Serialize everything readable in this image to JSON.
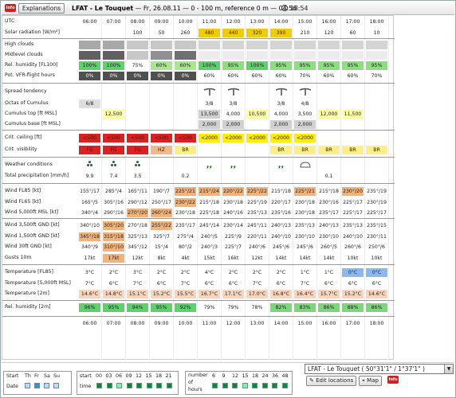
{
  "header": {
    "info_badge": "Info",
    "explanations": "Explanations",
    "station": "LFAT - Le Touquet",
    "rest": " — Fr, 26.08.11 — 0 - 100 m, reference 0 m — 04:56",
    "time2": "18:54"
  },
  "hours": [
    "06:00",
    "07:00",
    "08:00",
    "09:00",
    "10:00",
    "11:00",
    "12:00",
    "13:00",
    "14:00",
    "15:00",
    "16:00",
    "17:00",
    "18:00"
  ],
  "rows": [
    {
      "label": "UTC",
      "cells": [
        "06:00",
        "07:00",
        "08:00",
        "09:00",
        "10:00",
        "11:00",
        "12:00",
        "13:00",
        "14:00",
        "15:00",
        "16:00",
        "17:00",
        "18:00"
      ]
    },
    {
      "label": "Solar radiation [W/m²]",
      "cells": [
        "",
        "",
        "100",
        "50",
        "260",
        "480",
        "440",
        "320",
        "390",
        "210",
        "120",
        "60",
        "10"
      ],
      "bg": [
        "",
        "",
        "",
        "",
        "",
        "#f0cc00",
        "#f0cc00",
        "#f0cc00",
        "#f0cc00",
        "",
        "",
        "",
        ""
      ]
    },
    {
      "label": "High clouds",
      "cells": [
        "",
        "",
        "",
        "",
        "",
        "",
        "",
        "",
        "",
        "",
        "",
        "",
        ""
      ],
      "bg": [
        "#a8a8a8",
        "#a8a8a8",
        "#c8c8c8",
        "#c8c8c8",
        "#c8c8c8",
        "#d4d4d4",
        "#d4d4d4",
        "#d4d4d4",
        "#d4d4d4",
        "#d4d4d4",
        "#d4d4d4",
        "#d4d4d4",
        "#d4d4d4"
      ]
    },
    {
      "label": "Midlevel clouds",
      "cells": [
        "",
        "",
        "",
        "",
        "",
        "",
        "",
        "",
        "",
        "",
        "",
        "",
        ""
      ],
      "bg": [
        "#606060",
        "#606060",
        "#c8c8c8",
        "#909090",
        "#707070",
        "#ececec",
        "#ececec",
        "#ececec",
        "#ececec",
        "#ececec",
        "#ececec",
        "#ececec",
        "#ececec"
      ]
    },
    {
      "label": "Rel. humidity [FL100]",
      "cells": [
        "100%",
        "100%",
        "75%",
        "60%",
        "60%",
        "100%",
        "95%",
        "100%",
        "95%",
        "95%",
        "95%",
        "95%",
        "95%"
      ],
      "bg": [
        "#5ad46a",
        "#5ad46a",
        "",
        "#a6e88a",
        "#a6e88a",
        "#5ad46a",
        "#8ae07a",
        "#5ad46a",
        "#8ae07a",
        "#8ae07a",
        "#8ae07a",
        "#8ae07a",
        "#8ae07a"
      ]
    },
    {
      "label": "Pot. VFR-flight hours",
      "cells": [
        "0%",
        "0%",
        "0%",
        "0%",
        "0%",
        "60%",
        "60%",
        "60%",
        "60%",
        "70%",
        "60%",
        "60%",
        "70%"
      ],
      "bg": [
        "#505050",
        "#505050",
        "#505050",
        "#505050",
        "#505050",
        "",
        "",
        "",
        "",
        "",
        "",
        "",
        ""
      ],
      "fg": [
        "#fff",
        "#fff",
        "#fff",
        "#fff",
        "#fff",
        "",
        "",
        "",
        "",
        "",
        "",
        "",
        ""
      ]
    },
    {
      "label": "Spread tendency",
      "cells": [
        "",
        "",
        "",
        "",
        "",
        "T",
        "T",
        "",
        "T",
        "T",
        "",
        "",
        ""
      ]
    },
    {
      "label": "Octas of Cumulus",
      "cells": [
        "6/8",
        "",
        "",
        "",
        "",
        "3/8",
        "3/8",
        "",
        "3/8",
        "4/8",
        "",
        "",
        ""
      ],
      "bg": [
        "#dedede",
        "",
        "",
        "",
        "",
        "",
        "",
        "",
        "",
        "",
        "",
        "",
        ""
      ]
    },
    {
      "label": "Cumulus top [ft MSL]",
      "cells": [
        "",
        "12,500",
        "",
        "",
        "",
        "13,500",
        "4,000",
        "10,500",
        "4,000",
        "3,500",
        "12,000",
        "11,500",
        ""
      ],
      "bg": [
        "",
        "#ffffa0",
        "",
        "",
        "",
        "#d0d0d0",
        "",
        "#ffffa0",
        "",
        "",
        "#ffffa0",
        "#ffffa0",
        ""
      ]
    },
    {
      "label": "Cumulus base [ft MSL]",
      "cells": [
        "",
        "",
        "",
        "",
        "",
        "2,000",
        "2,000",
        "",
        "2,000",
        "2,000",
        "",
        "",
        ""
      ],
      "bg": [
        "",
        "",
        "",
        "",
        "",
        "#d0d0d0",
        "#d0d0d0",
        "",
        "#d0d0d0",
        "#d0d0d0",
        "",
        "",
        ""
      ]
    },
    {
      "label": "Crit. ceiling [ft]",
      "cells": [
        "<500",
        "<500",
        "<500",
        "<500",
        "<500",
        "<2000",
        "<2000",
        "<2000",
        "<2000",
        "<2000",
        "",
        "",
        ""
      ],
      "bg": [
        "#e02020",
        "#e02020",
        "#e02020",
        "#e02020",
        "#e02020",
        "#ffee00",
        "#ffee00",
        "#ffee00",
        "#ffee00",
        "#ffee00",
        "",
        "",
        ""
      ]
    },
    {
      "label": "Crit. visibility",
      "cells": [
        "FG",
        "FG",
        "FG",
        "HZ",
        "BR",
        "",
        "",
        "",
        "BR",
        "BR",
        "BR",
        "BR",
        "BR"
      ],
      "bg": [
        "#e02020",
        "#e02020",
        "#e02020",
        "#f4b888",
        "#ffee88",
        "",
        "",
        "",
        "#ffee88",
        "#ffee88",
        "#ffee88",
        "#ffee88",
        "#ffee88"
      ]
    },
    {
      "label": "Weather conditions",
      "cells": [
        "",
        "",
        "",
        "",
        "",
        "",
        "",
        "",
        "",
        "",
        "",
        "",
        ""
      ]
    },
    {
      "label": "Total precipitation [mm/h]",
      "cells": [
        "9.9",
        "7.4",
        "3.5",
        "",
        "0.2",
        "",
        "",
        "",
        "",
        "",
        "0.1",
        "",
        ""
      ]
    },
    {
      "label": "Wind FL85 [kt]",
      "cells": [
        "155°/17",
        "285°/4",
        "165°/11",
        "190°/7",
        "225°/21",
        "215°/24",
        "220°/22",
        "225°/22",
        "215°/18",
        "225°/21",
        "215°/18",
        "230°/20",
        "235°/19"
      ],
      "bg": [
        "",
        "",
        "",
        "",
        "#f2b27a",
        "#f2b27a",
        "#f2b27a",
        "#f2b27a",
        "",
        "#f2b27a",
        "",
        "#f2b27a",
        ""
      ]
    },
    {
      "label": "Wind FL65 [kt]",
      "cells": [
        "165°/5",
        "305°/16",
        "290°/12",
        "250°/17",
        "230°/22",
        "215°/18",
        "230°/18",
        "225°/19",
        "220°/17",
        "230°/18",
        "230°/16",
        "225°/17",
        "230°/19"
      ],
      "bg": [
        "",
        "",
        "",
        "",
        "#f2b27a",
        "",
        "",
        "",
        "",
        "",
        "",
        "",
        ""
      ]
    },
    {
      "label": "Wind 5,000ft MSL [kt]",
      "cells": [
        "340°/4",
        "290°/16",
        "270°/20",
        "260°/24",
        "230°/18",
        "225°/18",
        "240°/16",
        "235°/13",
        "235°/16",
        "230°/18",
        "235°/17",
        "225°/17",
        "225°/17"
      ],
      "bg": [
        "",
        "",
        "#f2b27a",
        "#f2b27a",
        "",
        "",
        "",
        "",
        "",
        "",
        "",
        "",
        ""
      ]
    },
    {
      "label": "Wind 3,500ft GND [kt]",
      "cells": [
        "340°/10",
        "305°/20",
        "270°/18",
        "255°/22",
        "235°/17",
        "245°/14",
        "230°/14",
        "245°/11",
        "240°/13",
        "235°/13",
        "240°/13",
        "235°/13",
        "235°/15"
      ],
      "bg": [
        "",
        "#f2b27a",
        "",
        "#f2b27a",
        "",
        "",
        "",
        "",
        "",
        "",
        "",
        "",
        ""
      ]
    },
    {
      "label": "Wind 1,500ft GND [kt]",
      "cells": [
        "345°/18",
        "315°/18",
        "325°/13",
        "325°/7",
        "275°/4",
        "240°/5",
        "225°/9",
        "220°/11",
        "240°/10",
        "230°/10",
        "230°/10",
        "240°/10",
        "230°/11"
      ],
      "bg": [
        "#f2b27a",
        "#f2b27a",
        "",
        "",
        "",
        "",
        "",
        "",
        "",
        "",
        "",
        "",
        ""
      ]
    },
    {
      "label": "Wind 30ft GND [kt]",
      "cells": [
        "340°/9",
        "310°/10",
        "345°/12",
        "15°/4",
        "80°/2",
        "240°/3",
        "225°/7",
        "240°/6",
        "245°/6",
        "245°/6",
        "260°/5",
        "260°/6",
        "250°/6"
      ],
      "bg": [
        "",
        "#f2b27a",
        "",
        "",
        "",
        "",
        "",
        "",
        "",
        "",
        "",
        "",
        ""
      ]
    },
    {
      "label": "Gusts 10m",
      "cells": [
        "17kt",
        "17kt",
        "12kt",
        "8kt",
        "4kt",
        "15kt",
        "16kt",
        "12kt",
        "14kt",
        "14kt",
        "14kt",
        "10kt",
        "10kt"
      ],
      "bg": [
        "",
        "#f2b27a",
        "",
        "",
        "",
        "",
        "",
        "",
        "",
        "",
        "",
        "",
        ""
      ]
    },
    {
      "label": "Temperature [FL85]",
      "cells": [
        "3°C",
        "2°C",
        "3°C",
        "2°C",
        "2°C",
        "4°C",
        "2°C",
        "2°C",
        "2°C",
        "1°C",
        "1°C",
        "0°C",
        "0°C"
      ],
      "bg": [
        "",
        "",
        "",
        "",
        "",
        "",
        "",
        "",
        "",
        "",
        "",
        "#8cb8f0",
        "#8cb8f0"
      ]
    },
    {
      "label": "Temperature [5,000ft MSL]",
      "cells": [
        "7°C",
        "6°C",
        "7°C",
        "6°C",
        "7°C",
        "6°C",
        "6°C",
        "7°C",
        "6°C",
        "7°C",
        "6°C",
        "6°C",
        "6°C"
      ]
    },
    {
      "label": "Temperature [2m]",
      "cells": [
        "14.6°C",
        "14.8°C",
        "15.1°C",
        "15.2°C",
        "15.5°C",
        "16.7°C",
        "17.1°C",
        "17.0°C",
        "16.8°C",
        "16.4°C",
        "15.7°C",
        "15.2°C",
        "14.6°C"
      ],
      "bg": [
        "#fbd4bc",
        "#fbd4bc",
        "#fbd4bc",
        "#fbd4bc",
        "#fbd4bc",
        "#fbd4bc",
        "#fbd4bc",
        "#fbd4bc",
        "#fbd4bc",
        "#fbd4bc",
        "#fbd4bc",
        "#fbd4bc",
        "#fbd4bc"
      ]
    },
    {
      "label": "Rel. humidity [2m]",
      "cells": [
        "96%",
        "95%",
        "94%",
        "95%",
        "92%",
        "79%",
        "79%",
        "78%",
        "82%",
        "83%",
        "86%",
        "88%",
        "86%"
      ],
      "bg": [
        "#5ad46a",
        "#5ad46a",
        "#5ad46a",
        "#5ad46a",
        "#5ad46a",
        "",
        "",
        "",
        "#7ad878",
        "#7ad878",
        "#7ad878",
        "#7ad878",
        "#7ad878"
      ]
    },
    {
      "label": "",
      "cells": [
        "06:00",
        "07:00",
        "08:00",
        "09:00",
        "10:00",
        "11:00",
        "12:00",
        "13:00",
        "14:00",
        "15:00",
        "16:00",
        "17:00",
        "18:00"
      ]
    }
  ],
  "weather": [
    "dots3",
    "dots3",
    "dots3",
    "",
    "",
    "comma",
    "comma",
    "",
    "comma",
    "cloud",
    "",
    "",
    ""
  ],
  "bottom": {
    "start_label": "Start",
    "days": [
      "Th",
      "Fr",
      "Sa",
      "Su"
    ],
    "date_label": "Date",
    "start_time_label": "start",
    "time_label": "time",
    "start_hours": [
      "00",
      "03",
      "06",
      "09",
      "12",
      "15",
      "18",
      "21"
    ],
    "number_label": "number",
    "of_label": "of",
    "hours_label": "hours",
    "num_hours": [
      "6",
      "9",
      "12",
      "15",
      "18",
      "24",
      "36",
      "48"
    ],
    "location": "LFAT - Le Touquet ( 50°31'1\" / 1°37'1\" )",
    "edit_locations": "Edit locations",
    "map": "Map",
    "info_badge": "Info"
  }
}
